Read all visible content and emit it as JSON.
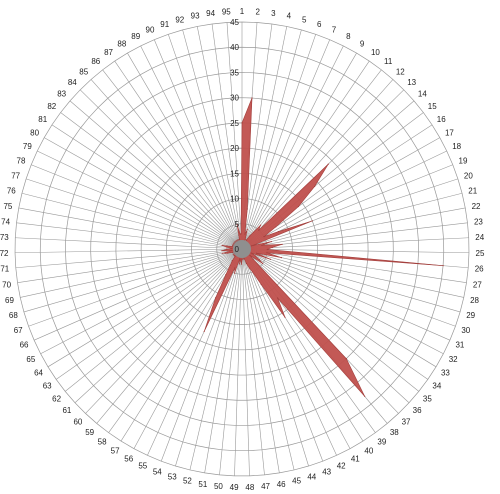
{
  "chart_data": {
    "type": "radar-filled",
    "categories": [
      "1",
      "2",
      "3",
      "4",
      "5",
      "6",
      "7",
      "8",
      "9",
      "10",
      "11",
      "12",
      "13",
      "14",
      "15",
      "16",
      "17",
      "18",
      "19",
      "20",
      "21",
      "22",
      "23",
      "24",
      "25",
      "26",
      "27",
      "28",
      "29",
      "30",
      "31",
      "32",
      "33",
      "34",
      "35",
      "36",
      "37",
      "38",
      "39",
      "40",
      "41",
      "42",
      "43",
      "44",
      "45",
      "46",
      "47",
      "48",
      "49",
      "50",
      "51",
      "52",
      "53",
      "54",
      "55",
      "56",
      "57",
      "58",
      "59",
      "60",
      "61",
      "62",
      "63",
      "64",
      "65",
      "66",
      "67",
      "68",
      "69",
      "70",
      "71",
      "72",
      "73",
      "74",
      "75",
      "76",
      "77",
      "78",
      "79",
      "80",
      "81",
      "82",
      "83",
      "84",
      "85",
      "86",
      "87",
      "88",
      "89",
      "90",
      "91",
      "92",
      "93",
      "94",
      "95"
    ],
    "values": [
      25,
      30,
      8,
      3,
      4,
      2,
      1,
      2,
      3,
      4,
      6,
      5,
      24,
      19,
      14,
      8,
      5,
      8,
      15,
      2,
      6,
      4,
      8,
      6,
      5,
      40,
      5,
      8,
      3,
      6,
      2,
      3,
      4,
      5,
      2,
      3,
      30,
      38,
      12,
      16,
      8,
      5,
      4,
      3,
      2,
      2,
      1,
      2,
      3,
      2,
      3,
      2,
      5,
      4,
      18,
      11,
      6,
      4,
      3,
      2,
      2,
      2,
      1,
      2,
      1,
      1,
      2,
      3,
      4,
      2,
      4,
      3,
      2,
      3,
      4,
      2,
      1,
      2,
      1,
      2,
      1,
      2,
      1,
      2,
      1,
      2,
      1,
      2,
      1,
      2,
      1,
      2,
      5,
      3,
      3
    ],
    "rmax": 45,
    "r_ticks": [
      0,
      5,
      10,
      15,
      20,
      25,
      30,
      35,
      40,
      45
    ],
    "series_color": "#c0504d",
    "grid_color": "#999999"
  }
}
